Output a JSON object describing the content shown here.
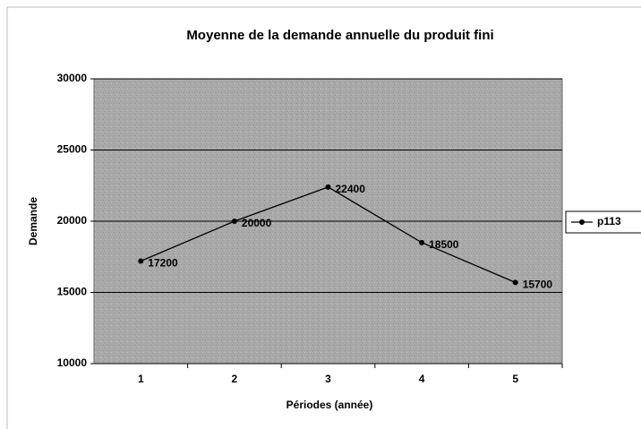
{
  "chart_data": {
    "type": "line",
    "title": "Moyenne de la demande annuelle du produit fini",
    "x_label": "Périodes (année)",
    "y_label": "Demande",
    "categories": [
      "1",
      "2",
      "3",
      "4",
      "5"
    ],
    "series": [
      {
        "name": "p113",
        "color": "#000000",
        "values": [
          17200,
          20000,
          22400,
          18500,
          15700
        ]
      }
    ],
    "ylim": [
      10000,
      30000
    ],
    "yticks": [
      10000,
      15000,
      20000,
      25000,
      30000
    ],
    "grid": true,
    "legend": "right"
  }
}
